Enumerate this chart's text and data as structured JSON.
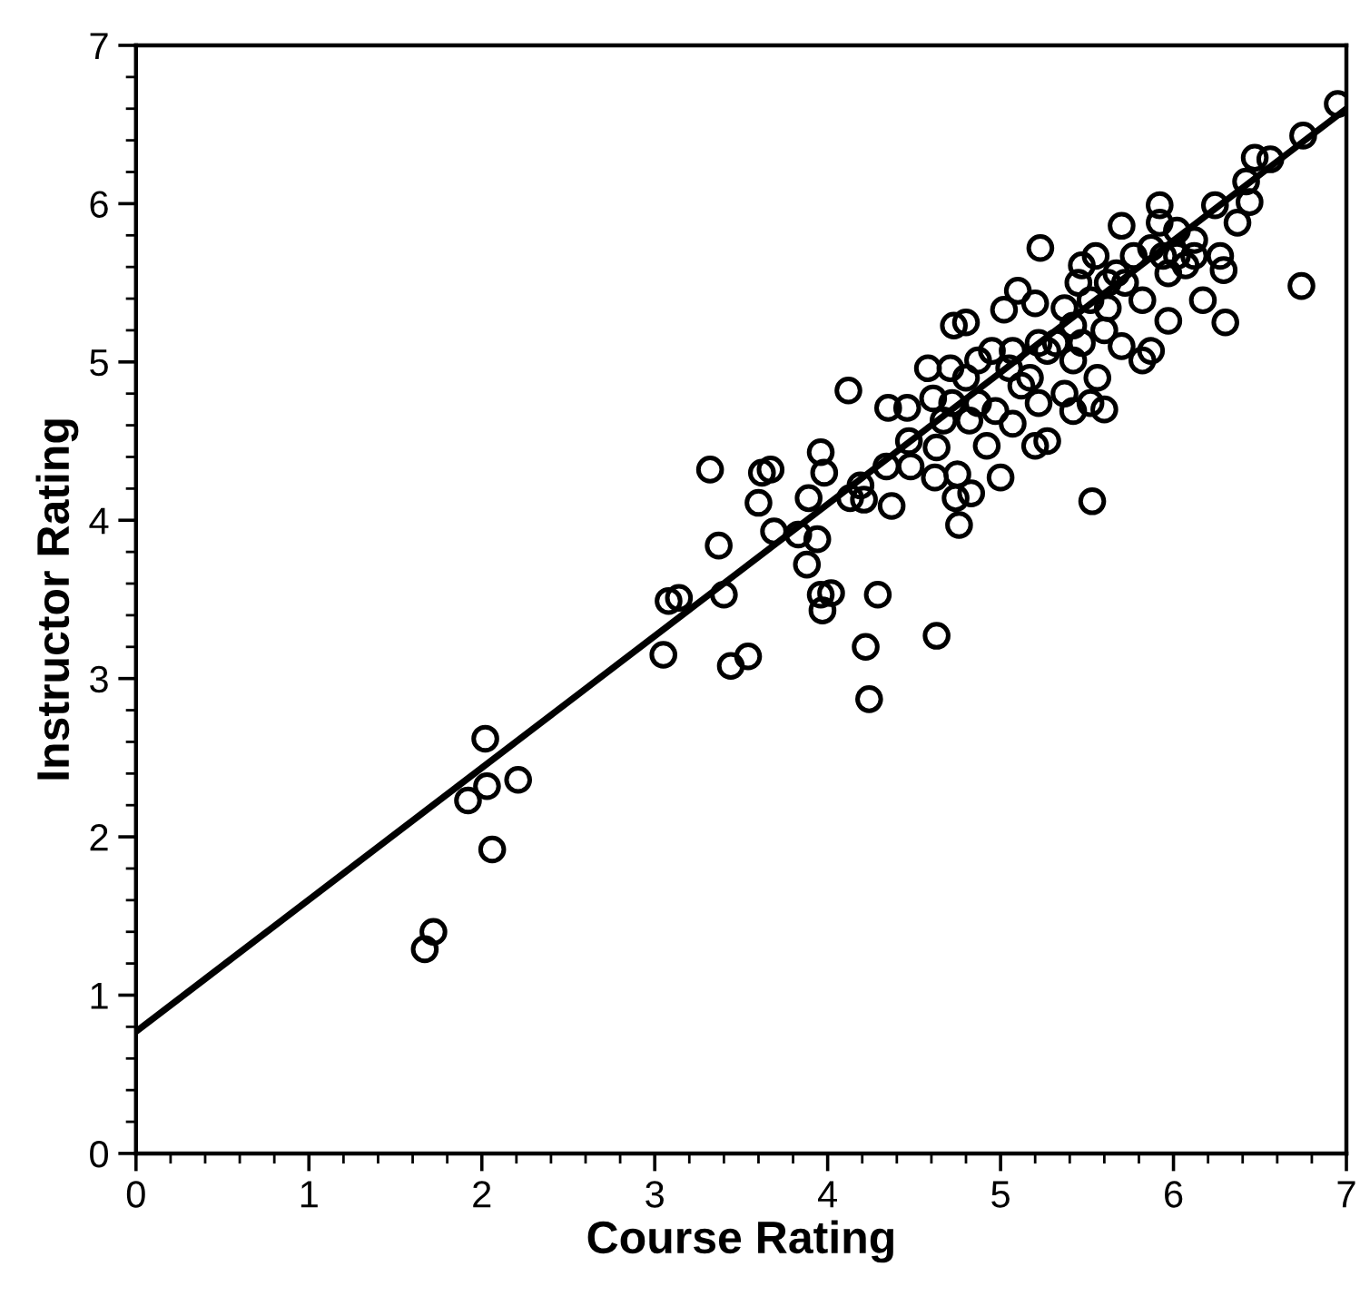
{
  "chart_data": {
    "type": "scatter",
    "xlabel": "Course Rating",
    "ylabel": "Instructor Rating",
    "xlim": [
      0,
      7
    ],
    "ylim": [
      0,
      7
    ],
    "xticks": [
      0,
      1,
      2,
      3,
      4,
      5,
      6,
      7
    ],
    "yticks": [
      0,
      1,
      2,
      3,
      4,
      5,
      6,
      7
    ],
    "grid": false,
    "legend": false,
    "marker": "circle",
    "series": [
      {
        "color": "#000000",
        "x": [
          1.67,
          1.72,
          1.92,
          2.03,
          2.02,
          2.06,
          2.21,
          3.05,
          3.08,
          3.14,
          3.32,
          3.37,
          3.4,
          3.44,
          3.54,
          3.6,
          3.62,
          3.67,
          3.69,
          3.83,
          3.88,
          3.89,
          3.94,
          3.96,
          3.98,
          3.96,
          3.97,
          4.02,
          4.12,
          4.13,
          4.22,
          4.24,
          4.21,
          4.29,
          4.19,
          4.35,
          4.37,
          4.46,
          4.47,
          4.48,
          4.34,
          4.63,
          4.58,
          4.61,
          4.63,
          4.62,
          4.73,
          4.8,
          4.76,
          4.74,
          4.83,
          4.75,
          4.71,
          4.8,
          4.87,
          4.92,
          5.0,
          4.95,
          5.02,
          5.1,
          5.23,
          5.2,
          5.07,
          5.05,
          5.17,
          5.27,
          5.2,
          5.27,
          5.37,
          5.42,
          5.53,
          5.6,
          5.52,
          5.56,
          5.42,
          5.45,
          5.47,
          5.55,
          5.62,
          5.6,
          5.7,
          5.72,
          5.7,
          5.82,
          5.87,
          5.92,
          5.94,
          5.97,
          6.02,
          6.07,
          6.17,
          6.12,
          6.24,
          6.27,
          6.29,
          6.3,
          6.37,
          6.44,
          6.42,
          6.47,
          6.56,
          6.74,
          6.75,
          6.95,
          4.72,
          4.87,
          4.97,
          5.12,
          5.22,
          5.32,
          5.42,
          5.52,
          5.67,
          5.77,
          5.87,
          5.97,
          6.02,
          6.12,
          5.82,
          5.47,
          5.22,
          5.07,
          4.82,
          4.67,
          5.37,
          5.62,
          5.92
        ],
        "values": [
          1.29,
          1.4,
          2.23,
          2.32,
          2.62,
          1.92,
          2.36,
          3.15,
          3.49,
          3.51,
          4.32,
          3.84,
          3.53,
          3.08,
          3.14,
          4.11,
          4.3,
          4.32,
          3.93,
          3.91,
          3.72,
          4.14,
          3.88,
          4.43,
          4.3,
          3.53,
          3.43,
          3.54,
          4.82,
          4.14,
          3.2,
          2.87,
          4.13,
          3.53,
          4.22,
          4.71,
          4.09,
          4.71,
          4.5,
          4.34,
          4.34,
          3.27,
          4.96,
          4.77,
          4.46,
          4.27,
          5.23,
          5.25,
          3.97,
          4.14,
          4.17,
          4.29,
          4.96,
          4.9,
          4.74,
          4.47,
          4.27,
          5.07,
          5.33,
          5.45,
          5.72,
          5.37,
          4.61,
          4.96,
          4.9,
          5.07,
          4.47,
          4.5,
          4.8,
          4.69,
          4.12,
          4.7,
          4.74,
          4.9,
          5.01,
          5.5,
          5.61,
          5.67,
          5.34,
          5.2,
          5.86,
          5.5,
          5.1,
          5.01,
          5.07,
          5.99,
          5.67,
          5.26,
          5.83,
          5.61,
          5.39,
          5.77,
          5.99,
          5.67,
          5.58,
          5.25,
          5.88,
          6.01,
          6.14,
          6.29,
          6.28,
          5.48,
          6.43,
          6.63,
          4.74,
          5.01,
          4.69,
          4.85,
          4.74,
          5.12,
          5.23,
          5.39,
          5.56,
          5.67,
          5.72,
          5.56,
          5.67,
          5.67,
          5.39,
          5.12,
          5.12,
          5.07,
          4.63,
          4.63,
          5.34,
          5.5,
          5.88
        ]
      },
      {
        "type": "line",
        "color": "#000000",
        "x": [
          0,
          7
        ],
        "values": [
          0.77,
          6.6
        ],
        "marker": "none",
        "line_style": "solid"
      }
    ]
  }
}
